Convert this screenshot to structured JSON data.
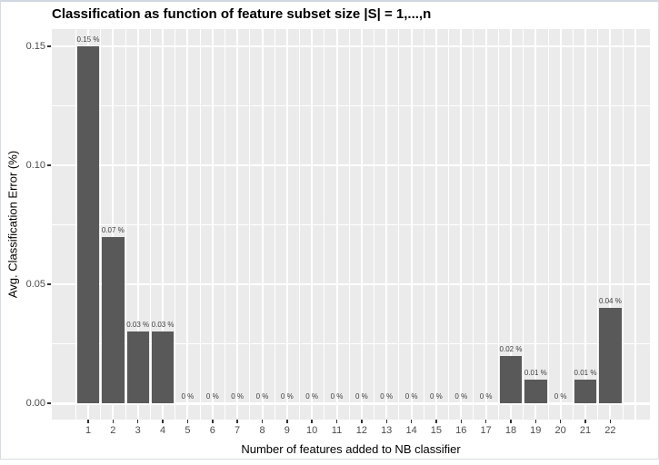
{
  "figure": {
    "border_color": "#d6dbe2",
    "background_color": "#ffffff"
  },
  "chart_data": {
    "type": "bar",
    "title": "Classification as function of feature subset size |S| = 1,...,n",
    "xlabel": "Number of features added to NB classifier",
    "ylabel": "Avg. Classification Error (%)",
    "categories": [
      "1",
      "2",
      "3",
      "4",
      "5",
      "6",
      "7",
      "8",
      "9",
      "10",
      "11",
      "12",
      "13",
      "14",
      "15",
      "16",
      "17",
      "18",
      "19",
      "20",
      "21",
      "22"
    ],
    "values": [
      0.15,
      0.07,
      0.03,
      0.03,
      0,
      0,
      0,
      0,
      0,
      0,
      0,
      0,
      0,
      0,
      0,
      0,
      0,
      0.02,
      0.01,
      0,
      0.01,
      0.04
    ],
    "bar_labels": [
      "0.15 %",
      "0.07 %",
      "0.03 %",
      "0.03 %",
      "0 %",
      "0 %",
      "0 %",
      "0 %",
      "0 %",
      "0 %",
      "0 %",
      "0 %",
      "0 %",
      "0 %",
      "0 %",
      "0 %",
      "0 %",
      "0.02 %",
      "0.01 %",
      "0 %",
      "0.01 %",
      "0.04 %"
    ],
    "ytick_values": [
      0,
      0.05,
      0.1,
      0.15
    ],
    "ytick_labels": [
      "0.00",
      "0.05",
      "0.10",
      "0.15"
    ],
    "y_minor_gridlines": [
      0.025,
      0.075,
      0.125
    ],
    "ylim": [
      -0.0075,
      0.1575
    ],
    "grid": "white major and minor gridlines on gray panel",
    "legend": "none",
    "colors": {
      "bar": "#595959",
      "panel_bg": "#ebebeb",
      "gridline": "#ffffff",
      "tick_text": "#4d4d4d",
      "bar_label_text": "#404040",
      "axis_title_text": "#000000",
      "title_text": "#000000"
    }
  }
}
